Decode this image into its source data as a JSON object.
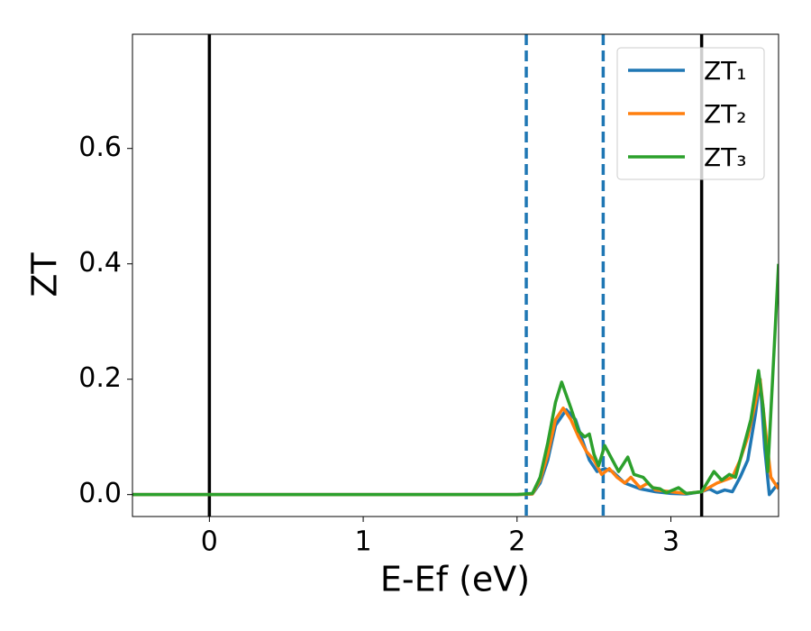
{
  "chart_data": {
    "type": "line",
    "xlabel": "E-Ef (eV)",
    "ylabel": "ZT",
    "xlim": [
      -0.5,
      3.7
    ],
    "ylim": [
      -0.038,
      0.798
    ],
    "xticks": [
      0,
      1,
      2,
      3
    ],
    "yticks": [
      {
        "value": 0,
        "label": "0.0"
      },
      {
        "value": 0.2,
        "label": "0.2"
      },
      {
        "value": 0.4,
        "label": "0.4"
      },
      {
        "value": 0.6,
        "label": "0.6"
      }
    ],
    "legend": "upper right",
    "vlines": [
      {
        "x": 0,
        "color": "#000000",
        "style": "solid"
      },
      {
        "x": 3.2,
        "color": "#000000",
        "style": "solid"
      },
      {
        "x": 2.06,
        "color": "#1f77b4",
        "style": "dashed"
      },
      {
        "x": 2.56,
        "color": "#1f77b4",
        "style": "dashed"
      }
    ],
    "series": [
      {
        "name": "ZT₁",
        "color": "#1f77b4",
        "x": [
          -0.5,
          2.0,
          2.1,
          2.15,
          2.2,
          2.25,
          2.32,
          2.38,
          2.43,
          2.47,
          2.52,
          2.57,
          2.62,
          2.7,
          2.8,
          2.9,
          3.0,
          3.1,
          3.2,
          3.25,
          3.3,
          3.35,
          3.4,
          3.45,
          3.5,
          3.55,
          3.58,
          3.61,
          3.64,
          3.7
        ],
        "values": [
          0,
          0,
          0.001,
          0.02,
          0.06,
          0.12,
          0.147,
          0.13,
          0.09,
          0.06,
          0.04,
          0.045,
          0.04,
          0.02,
          0.01,
          0.005,
          0.002,
          0.001,
          0.005,
          0.01,
          0.003,
          0.008,
          0.005,
          0.03,
          0.06,
          0.14,
          0.2,
          0.08,
          0.0,
          0.02
        ]
      },
      {
        "name": "ZT₂",
        "color": "#ff7f0e",
        "x": [
          -0.5,
          2.0,
          2.1,
          2.15,
          2.2,
          2.25,
          2.3,
          2.35,
          2.4,
          2.45,
          2.5,
          2.55,
          2.6,
          2.65,
          2.7,
          2.74,
          2.8,
          2.85,
          2.9,
          3.0,
          3.1,
          3.2,
          3.3,
          3.4,
          3.45,
          3.5,
          3.55,
          3.58,
          3.62,
          3.65,
          3.7
        ],
        "values": [
          0,
          0,
          0.001,
          0.025,
          0.07,
          0.13,
          0.15,
          0.13,
          0.1,
          0.075,
          0.06,
          0.035,
          0.045,
          0.03,
          0.02,
          0.03,
          0.012,
          0.02,
          0.008,
          0.005,
          0.002,
          0.005,
          0.02,
          0.03,
          0.06,
          0.1,
          0.16,
          0.2,
          0.1,
          0.03,
          0.01
        ]
      },
      {
        "name": "ZT₃",
        "color": "#2ca02c",
        "x": [
          -0.5,
          2.0,
          2.1,
          2.15,
          2.2,
          2.25,
          2.29,
          2.35,
          2.4,
          2.44,
          2.47,
          2.5,
          2.53,
          2.57,
          2.62,
          2.66,
          2.72,
          2.76,
          2.82,
          2.88,
          2.93,
          2.97,
          3.05,
          3.1,
          3.2,
          3.28,
          3.33,
          3.38,
          3.42,
          3.47,
          3.52,
          3.57,
          3.6,
          3.63,
          3.7
        ],
        "values": [
          0,
          0,
          0.002,
          0.03,
          0.09,
          0.16,
          0.195,
          0.15,
          0.11,
          0.1,
          0.105,
          0.07,
          0.05,
          0.085,
          0.06,
          0.04,
          0.065,
          0.035,
          0.03,
          0.012,
          0.01,
          0.003,
          0.012,
          0.002,
          0.005,
          0.04,
          0.025,
          0.035,
          0.03,
          0.08,
          0.13,
          0.215,
          0.15,
          0.04,
          0.4
        ]
      }
    ]
  }
}
